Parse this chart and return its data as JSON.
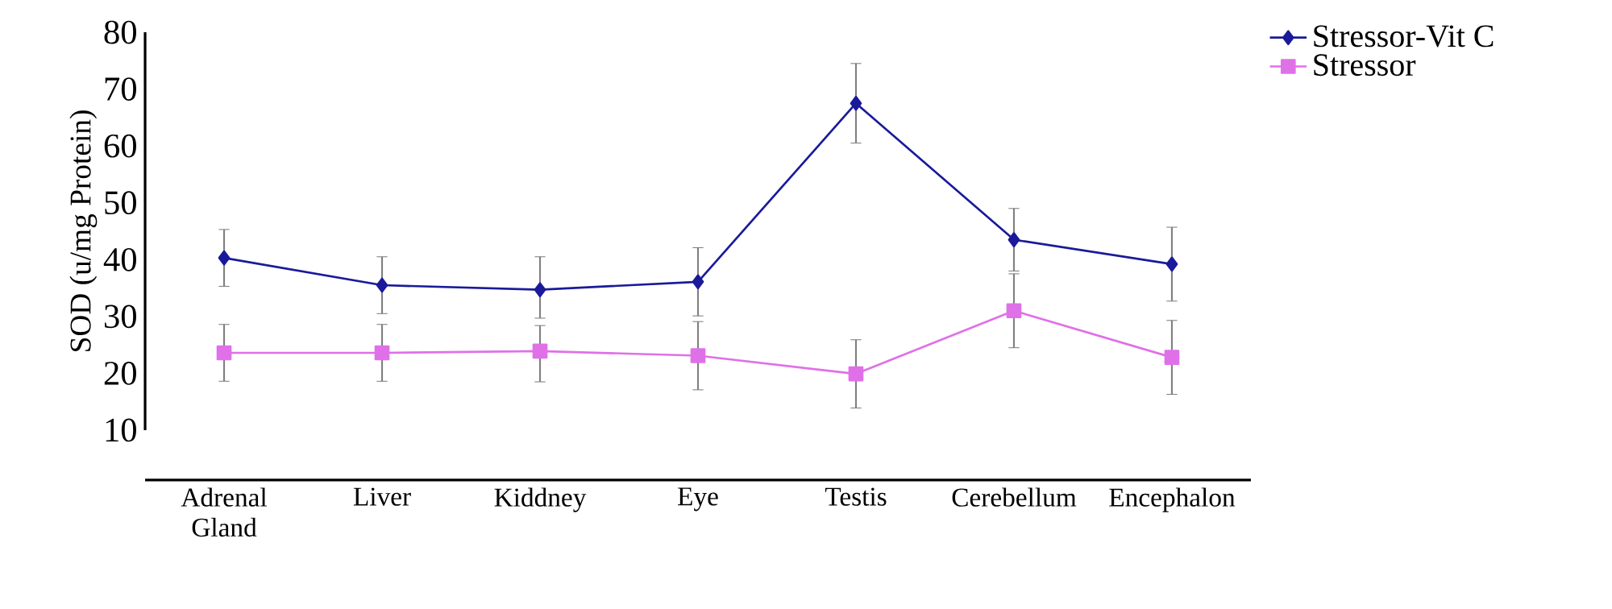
{
  "chart_data": {
    "type": "line",
    "ylabel": "SOD (u/mg Protein)",
    "categories": [
      "Adrenal Gland",
      "Liver",
      "Kiddney",
      "Eye",
      "Testis",
      "Cerebellum",
      "Encephalon"
    ],
    "series": [
      {
        "name": "Stressor-Vit C",
        "color": "#1a1a9a",
        "marker": "diamond",
        "values": [
          40.3,
          35.5,
          34.7,
          36.1,
          67.5,
          43.5,
          39.2
        ],
        "errors": [
          5,
          5,
          [
            29.7,
            40.5
          ],
          6,
          7,
          5.5,
          6.5
        ]
      },
      {
        "name": "Stressor",
        "color": "#e070e8",
        "marker": "square",
        "values": [
          23.6,
          23.6,
          23.9,
          23.1,
          19.9,
          31.0,
          22.8
        ],
        "errors": [
          5,
          5,
          [
            18.5,
            28.4
          ],
          6,
          6,
          6.5,
          6.5
        ]
      }
    ],
    "ylim": [
      10,
      80
    ],
    "yticks": [
      10,
      20,
      30,
      40,
      50,
      60,
      70,
      80
    ],
    "grid": false,
    "legend": "top right"
  }
}
